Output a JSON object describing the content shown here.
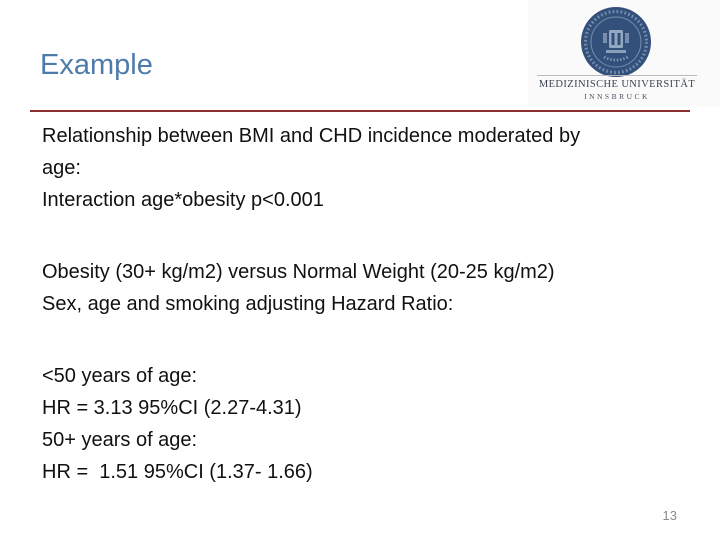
{
  "slide": {
    "title": "Example",
    "page_number": "13",
    "logo": {
      "institution": "MEDIZINISCHE UNIVERSITÄT",
      "city": "INNSBRUCK",
      "seal_icon": "university-seal-icon"
    },
    "body": {
      "paragraphs": [
        {
          "lines": [
            "Relationship between BMI and CHD incidence moderated by",
            "age:",
            "Interaction age*obesity p<0.001"
          ]
        },
        {
          "lines": [
            "Obesity (30+ kg/m2) versus Normal Weight (20-25 kg/m2)",
            "Sex, age and smoking adjusting Hazard Ratio:"
          ]
        },
        {
          "lines": [
            "<50 years of age:",
            "HR = 3.13 95%CI (2.27-4.31)",
            "50+ years of age:",
            "HR =  1.51 95%CI (1.37- 1.66)"
          ]
        }
      ]
    },
    "colors": {
      "title_accent": "#4e7bab",
      "divider_red": "#8b2e2e",
      "seal_navy": "#33507a",
      "logo_text": "#3a4454",
      "page_number_gray": "#8c8c8c",
      "logo_panel_bg": "#fafafa"
    }
  }
}
